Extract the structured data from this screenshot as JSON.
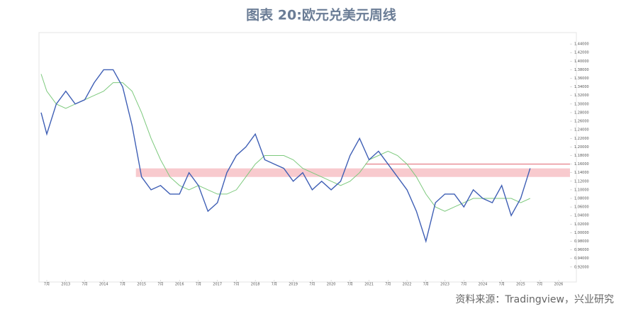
{
  "title": "图表 20:欧元兑美元周线",
  "source": "资料来源：Tradingview，兴业研究",
  "chart_data": {
    "type": "line",
    "x": [
      2012.35,
      2012.5,
      2012.75,
      2013.0,
      2013.25,
      2013.5,
      2013.75,
      2014.0,
      2014.25,
      2014.5,
      2014.75,
      2015.0,
      2015.25,
      2015.5,
      2015.75,
      2016.0,
      2016.25,
      2016.5,
      2016.75,
      2017.0,
      2017.25,
      2017.5,
      2017.75,
      2018.0,
      2018.25,
      2018.5,
      2018.75,
      2019.0,
      2019.25,
      2019.5,
      2019.75,
      2020.0,
      2020.25,
      2020.5,
      2020.75,
      2021.0,
      2021.25,
      2021.5,
      2021.75,
      2022.0,
      2022.25,
      2022.5,
      2022.75,
      2023.0,
      2023.25,
      2023.5,
      2023.75,
      2024.0,
      2024.25,
      2024.5,
      2024.75,
      2025.0,
      2025.25
    ],
    "series": [
      {
        "color": "#3f5fb5",
        "values": [
          1.28,
          1.23,
          1.3,
          1.33,
          1.3,
          1.31,
          1.35,
          1.38,
          1.38,
          1.34,
          1.25,
          1.13,
          1.1,
          1.11,
          1.09,
          1.09,
          1.14,
          1.11,
          1.05,
          1.07,
          1.14,
          1.18,
          1.2,
          1.23,
          1.17,
          1.16,
          1.15,
          1.12,
          1.14,
          1.1,
          1.12,
          1.1,
          1.12,
          1.18,
          1.22,
          1.17,
          1.19,
          1.16,
          1.13,
          1.1,
          1.05,
          0.98,
          1.07,
          1.09,
          1.09,
          1.06,
          1.1,
          1.08,
          1.07,
          1.11,
          1.04,
          1.08,
          1.15
        ]
      },
      {
        "color": "#7dc97d",
        "values": [
          1.37,
          1.33,
          1.3,
          1.29,
          1.3,
          1.31,
          1.32,
          1.33,
          1.35,
          1.35,
          1.33,
          1.28,
          1.22,
          1.17,
          1.13,
          1.11,
          1.1,
          1.11,
          1.1,
          1.09,
          1.09,
          1.1,
          1.13,
          1.16,
          1.18,
          1.18,
          1.18,
          1.17,
          1.15,
          1.14,
          1.13,
          1.12,
          1.11,
          1.12,
          1.14,
          1.17,
          1.18,
          1.19,
          1.18,
          1.16,
          1.13,
          1.09,
          1.06,
          1.05,
          1.06,
          1.07,
          1.08,
          1.08,
          1.08,
          1.08,
          1.08,
          1.07,
          1.08
        ]
      }
    ],
    "band": [
      1.13,
      1.15
    ],
    "band_color": "#f4a6ad",
    "line_level": 1.16,
    "line_color": "#e0636e",
    "xlim": [
      2012.35,
      2026.3
    ],
    "ylim": [
      0.89,
      1.46
    ],
    "xticks": [
      {
        "value": 2012.5,
        "label": "7月"
      },
      2013,
      {
        "value": 2013.5,
        "label": "7月"
      },
      2014,
      {
        "value": 2014.5,
        "label": "7月"
      },
      2015,
      {
        "value": 2015.5,
        "label": "7月"
      },
      2016,
      {
        "value": 2016.5,
        "label": "7月"
      },
      2017,
      {
        "value": 2017.5,
        "label": "7月"
      },
      2018,
      {
        "value": 2018.5,
        "label": "7月"
      },
      2019,
      {
        "value": 2019.5,
        "label": "7月"
      },
      2020,
      {
        "value": 2020.5,
        "label": "7月"
      },
      2021,
      {
        "value": 2021.5,
        "label": "7月"
      },
      2022,
      {
        "value": 2022.5,
        "label": "7月"
      },
      2023,
      {
        "value": 2023.5,
        "label": "7月"
      },
      2024,
      {
        "value": 2024.5,
        "label": "7月"
      },
      2025,
      {
        "value": 2025.5,
        "label": "7月"
      },
      2026
    ],
    "yticks": [
      {
        "value": 0.92,
        "label": "0.92000"
      },
      {
        "value": 0.94,
        "label": "0.94000"
      },
      {
        "value": 0.96,
        "label": "0.96000"
      },
      {
        "value": 0.98,
        "label": "0.98000"
      },
      {
        "value": 1.0,
        "label": "1.00000"
      },
      {
        "value": 1.02,
        "label": "1.02000"
      },
      {
        "value": 1.04,
        "label": "1.04000"
      },
      {
        "value": 1.06,
        "label": "1.06000"
      },
      {
        "value": 1.08,
        "label": "1.08000"
      },
      {
        "value": 1.1,
        "label": "1.10000"
      },
      {
        "value": 1.12,
        "label": "1.12000"
      },
      {
        "value": 1.14,
        "label": "1.14000"
      },
      {
        "value": 1.16,
        "label": "1.16000"
      },
      {
        "value": 1.18,
        "label": "1.18000"
      },
      {
        "value": 1.2,
        "label": "1.20000"
      },
      {
        "value": 1.22,
        "label": "1.22000"
      },
      {
        "value": 1.24,
        "label": "1.24000"
      },
      {
        "value": 1.26,
        "label": "1.26000"
      },
      {
        "value": 1.28,
        "label": "1.28000"
      },
      {
        "value": 1.3,
        "label": "1.30000"
      },
      {
        "value": 1.32,
        "label": "1.32000"
      },
      {
        "value": 1.34,
        "label": "1.34000"
      },
      {
        "value": 1.36,
        "label": "1.36000"
      },
      {
        "value": 1.38,
        "label": "1.38000"
      },
      {
        "value": 1.4,
        "label": "1.40000"
      },
      {
        "value": 1.42,
        "label": "1.42000"
      },
      {
        "value": 1.44,
        "label": "1.44000"
      }
    ]
  }
}
